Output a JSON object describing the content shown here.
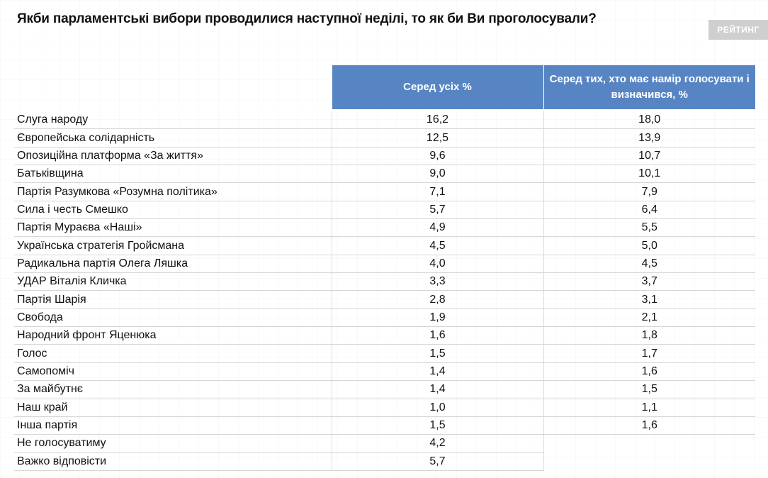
{
  "header": {
    "title": "Якби парламентські вибори проводилися наступної неділі, то як би Ви проголосували?",
    "logo": "РЕЙТИНГ"
  },
  "table": {
    "columns": [
      "Серед усіх %",
      "Серед тих, хто має намір голосувати і визначився, %"
    ],
    "rows": [
      [
        "Слуга народу",
        "16,2",
        "18,0"
      ],
      [
        "Європейська солідарність",
        "12,5",
        "13,9"
      ],
      [
        "Опозиційна платформа «За життя»",
        "9,6",
        "10,7"
      ],
      [
        "Батьківщина",
        "9,0",
        "10,1"
      ],
      [
        "Партія Разумкова «Розумна політика»",
        "7,1",
        "7,9"
      ],
      [
        "Сила і честь Смешко",
        "5,7",
        "6,4"
      ],
      [
        "Партія Мураєва «Наші»",
        "4,9",
        "5,5"
      ],
      [
        "Українська стратегія Гройсмана",
        "4,5",
        "5,0"
      ],
      [
        "Радикальна партія Олега Ляшка",
        "4,0",
        "4,5"
      ],
      [
        "УДАР Віталія Кличка",
        "3,3",
        "3,7"
      ],
      [
        "Партія Шарія",
        "2,8",
        "3,1"
      ],
      [
        "Свобода",
        "1,9",
        "2,1"
      ],
      [
        "Народний фронт Яценюка",
        "1,6",
        "1,8"
      ],
      [
        "Голос",
        "1,5",
        "1,7"
      ],
      [
        "Самопоміч",
        "1,4",
        "1,6"
      ],
      [
        "За майбутнє",
        "1,4",
        "1,5"
      ],
      [
        "Наш край",
        "1,0",
        "1,1"
      ],
      [
        "Інша партія",
        "1,5",
        "1,6"
      ],
      [
        "Не голосуватиму",
        "4,2"
      ],
      [
        "Важко відповісти",
        "5,7"
      ]
    ]
  }
}
